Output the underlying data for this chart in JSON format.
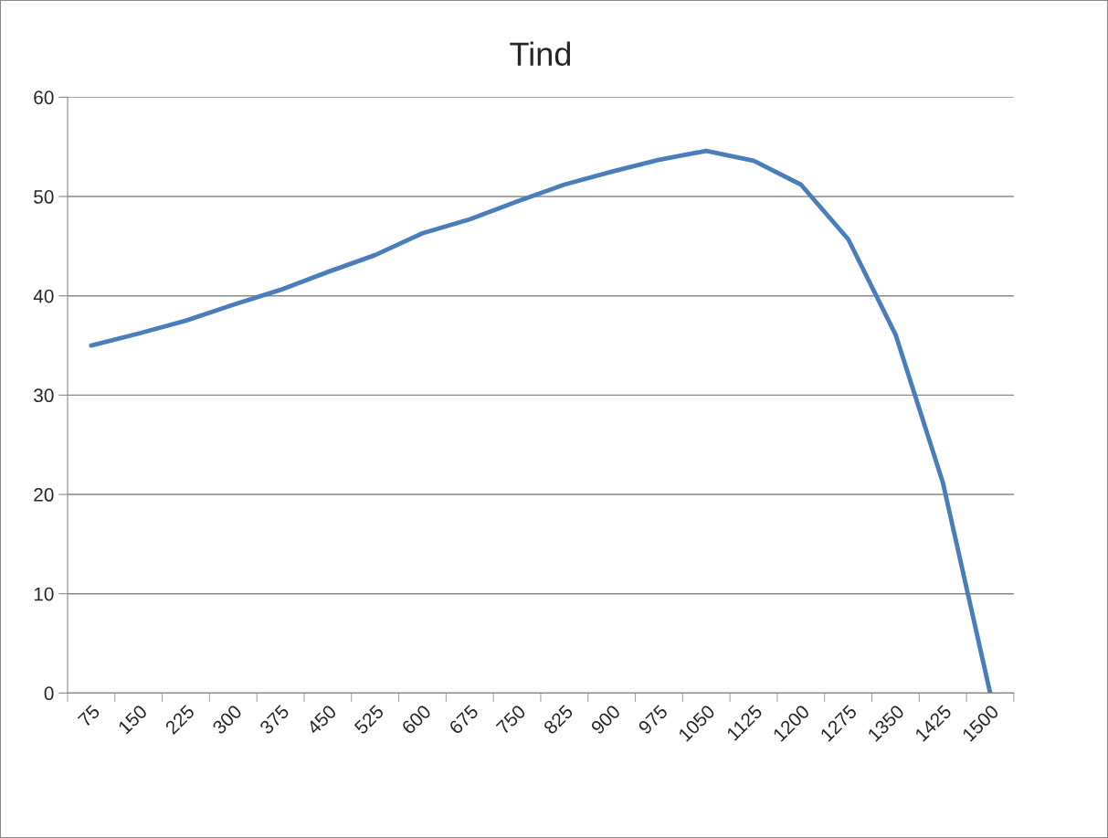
{
  "chart_data": {
    "type": "line",
    "title": "Tind",
    "categories": [
      "75",
      "150",
      "225",
      "300",
      "375",
      "450",
      "525",
      "600",
      "675",
      "750",
      "825",
      "900",
      "975",
      "1050",
      "1125",
      "1200",
      "1275",
      "1350",
      "1425",
      "1500"
    ],
    "series": [
      {
        "color": "#4a7ebb",
        "values": [
          35.0,
          36.2,
          37.5,
          39.1,
          40.6,
          42.4,
          44.1,
          46.3,
          47.7,
          49.5,
          51.2,
          52.5,
          53.7,
          54.6,
          53.6,
          51.2,
          45.7,
          36.1,
          21.2,
          0
        ]
      }
    ],
    "ylim": [
      0,
      60
    ],
    "yticks": [
      0,
      10,
      20,
      30,
      40,
      50,
      60
    ],
    "grid": "y",
    "legend": false
  }
}
